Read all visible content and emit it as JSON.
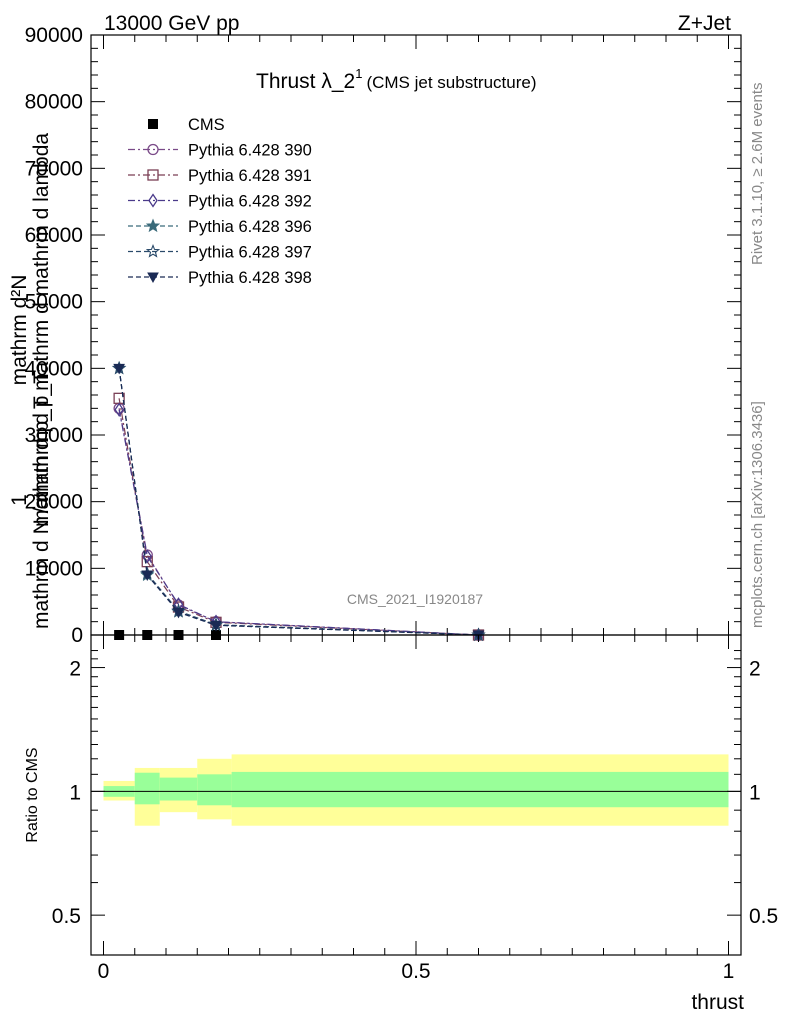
{
  "header": {
    "left": "13000 GeV pp",
    "right": "Z+Jet"
  },
  "plot_title_main": "Thrust λ_2",
  "plot_title_sup": "1",
  "plot_title_sub": "(CMS jet substructure)",
  "watermark": "CMS_2021_I1920187",
  "side_text_top": "Rivet 3.1.10, ≥ 2.6M events",
  "side_text_bottom": "mcplots.cern.ch [arXiv:1306.3436]",
  "colors": {
    "p390": "#7a4a88",
    "p391": "#7a3f55",
    "p392": "#4a3a8a",
    "p396": "#3a6a7a",
    "p397": "#2a4a6a",
    "p398": "#1a2a55",
    "band_inner": "#99ff99",
    "band_outer": "#ffff99"
  },
  "chart_data": [
    {
      "type": "line",
      "title": "Thrust λ_2^1 (CMS jet substructure)",
      "ylabel_lines": [
        "mathrm d²N",
        "mathrm d p_T mathrm d mathrm d lambda",
        "1",
        "mathrm d N / mathrm d p_T"
      ],
      "xlim": [
        -0.02,
        1.02
      ],
      "ylim": [
        0,
        90000
      ],
      "y_ticks": [
        0,
        10000,
        20000,
        30000,
        40000,
        50000,
        60000,
        70000,
        80000,
        90000
      ],
      "y_tick_labels": [
        "0",
        "10000",
        "20000",
        "30000",
        "40000",
        "50000",
        "60000",
        "70000",
        "80000",
        "90000"
      ],
      "legend_position": "top-left",
      "series": [
        {
          "name": "CMS",
          "marker": "square-filled",
          "x": [
            0.025,
            0.07,
            0.12,
            0.18
          ],
          "y": [
            0,
            0,
            0,
            0
          ]
        },
        {
          "name": "Pythia 6.428 390",
          "marker": "circle-open",
          "x": [
            0.025,
            0.07,
            0.12,
            0.18,
            0.6
          ],
          "y": [
            34000,
            12000,
            4500,
            2000,
            0
          ]
        },
        {
          "name": "Pythia 6.428 391",
          "marker": "square-open",
          "x": [
            0.025,
            0.07,
            0.12,
            0.18,
            0.6
          ],
          "y": [
            35500,
            11000,
            4200,
            1900,
            0
          ]
        },
        {
          "name": "Pythia 6.428 392",
          "marker": "diamond-open",
          "x": [
            0.025,
            0.07,
            0.12,
            0.18,
            0.6
          ],
          "y": [
            33800,
            11800,
            4600,
            2000,
            0
          ]
        },
        {
          "name": "Pythia 6.428 396",
          "marker": "star-filled",
          "x": [
            0.025,
            0.07,
            0.12,
            0.18,
            0.6
          ],
          "y": [
            40000,
            9000,
            3500,
            1500,
            0
          ]
        },
        {
          "name": "Pythia 6.428 397",
          "marker": "star-open",
          "x": [
            0.025,
            0.07,
            0.12,
            0.18,
            0.6
          ],
          "y": [
            40000,
            9200,
            3600,
            1550,
            0
          ]
        },
        {
          "name": "Pythia 6.428 398",
          "marker": "triangle-down-filled",
          "x": [
            0.025,
            0.07,
            0.12,
            0.18,
            0.6
          ],
          "y": [
            40000,
            9000,
            3400,
            1450,
            0
          ]
        }
      ]
    },
    {
      "type": "area",
      "ylabel": "Ratio to CMS",
      "xlabel": "thrust",
      "xlim": [
        -0.02,
        1.02
      ],
      "ylim": [
        0.4,
        2.4
      ],
      "y_scale": "log",
      "y_ticks": [
        0.5,
        1,
        2
      ],
      "y_tick_labels": [
        "0.5",
        "1",
        "2"
      ],
      "x_ticks": [
        0,
        0.5,
        1
      ],
      "x_tick_labels": [
        "0",
        "0.5",
        "1"
      ],
      "reference_line": 1,
      "bins": [
        [
          0.0,
          0.05
        ],
        [
          0.05,
          0.09
        ],
        [
          0.09,
          0.15
        ],
        [
          0.15,
          0.205
        ],
        [
          0.205,
          1.0
        ]
      ],
      "inner_band": [
        [
          0.97,
          1.03
        ],
        [
          0.93,
          1.11
        ],
        [
          0.95,
          1.08
        ],
        [
          0.925,
          1.1
        ],
        [
          0.915,
          1.115
        ]
      ],
      "outer_band": [
        [
          0.95,
          1.06
        ],
        [
          0.825,
          1.14
        ],
        [
          0.89,
          1.14
        ],
        [
          0.855,
          1.2
        ],
        [
          0.825,
          1.23
        ]
      ]
    }
  ]
}
